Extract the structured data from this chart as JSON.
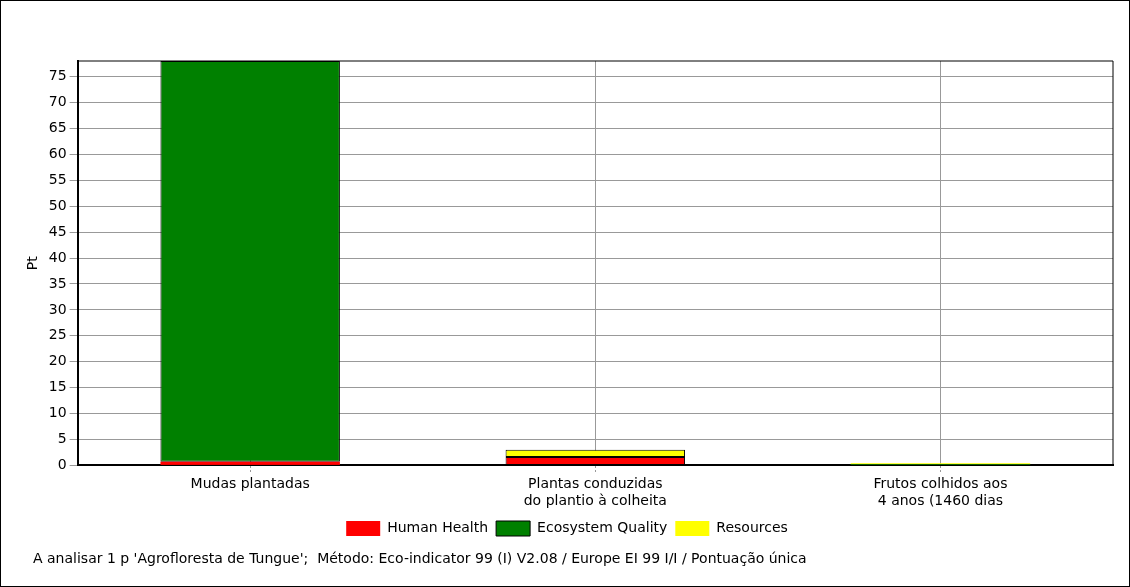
{
  "chart_data": {
    "type": "bar",
    "stacked": true,
    "ylabel": "Pt",
    "categories": [
      "Mudas plantadas",
      "Plantas conduzidas\ndo plantio à colheita",
      "Frutos colhidos aos\n4 anos (1460 dias"
    ],
    "series": [
      {
        "name": "Human Health",
        "color": "#ff0000",
        "values": [
          0.7,
          1.6,
          null
        ]
      },
      {
        "name": "Ecosystem Quality",
        "color": "#008000",
        "values": [
          77.3,
          null,
          0.2
        ]
      },
      {
        "name": "Resources",
        "color": "#ffff00",
        "values": [
          null,
          1.4,
          0.2
        ]
      }
    ],
    "ylim": [
      0,
      78
    ],
    "yticks": [
      0,
      5,
      10,
      15,
      20,
      25,
      30,
      35,
      40,
      45,
      50,
      55,
      60,
      65,
      70,
      75
    ],
    "grid": true,
    "legend": "bottom",
    "annotations": [
      "A analisar 1 p 'Agrofloresta de Tungue';  Método: Eco-indicator 99 (I) V2.08 / Europe EI 99 I/I / Pontuação única"
    ]
  }
}
